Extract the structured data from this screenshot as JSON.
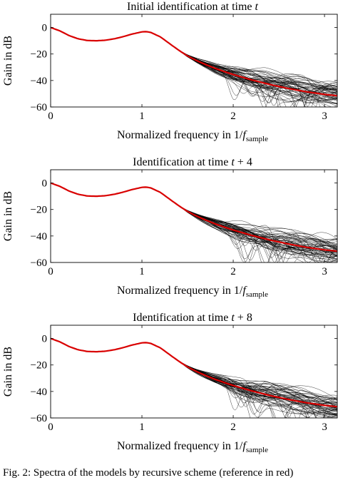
{
  "figure": {
    "caption": "Fig. 2: Spectra of the models by recursive scheme (reference in red)"
  },
  "colors": {
    "reference": "#d90000",
    "models": "#000000"
  },
  "chart_data": [
    {
      "type": "line",
      "title": "Initial identification at time t",
      "xlabel": "Normalized frequency in 1/f_sample",
      "ylabel": "Gain in dB",
      "xlim": [
        0,
        3.14
      ],
      "ylim": [
        -60,
        10
      ],
      "xticks": [
        0,
        1,
        2,
        3
      ],
      "yticks": [
        0,
        -20,
        -40,
        -60
      ],
      "grid": false,
      "ensemble_model_count": 60,
      "series": [
        {
          "role": "reference",
          "color": "#d90000",
          "x": [
            0,
            0.1,
            0.2,
            0.3,
            0.4,
            0.5,
            0.6,
            0.7,
            0.8,
            0.9,
            1.0,
            1.05,
            1.1,
            1.2,
            1.3,
            1.4,
            1.5,
            1.6,
            1.7,
            1.8,
            1.9,
            2.0,
            2.2,
            2.4,
            2.6,
            2.8,
            3.0,
            3.14
          ],
          "values": [
            0,
            -2.5,
            -6,
            -8.5,
            -9.8,
            -10,
            -9.6,
            -8.5,
            -6.8,
            -4.8,
            -3.3,
            -3.1,
            -3.8,
            -7,
            -12,
            -17,
            -21.5,
            -25,
            -28,
            -30.8,
            -33.2,
            -35.5,
            -39.5,
            -43,
            -46,
            -48.5,
            -50.5,
            -51.5
          ]
        }
      ]
    },
    {
      "type": "line",
      "title": "Identification at time t + 4",
      "xlabel": "Normalized frequency in 1/f_sample",
      "ylabel": "Gain in dB",
      "xlim": [
        0,
        3.14
      ],
      "ylim": [
        -60,
        10
      ],
      "xticks": [
        0,
        1,
        2,
        3
      ],
      "yticks": [
        0,
        -20,
        -40,
        -60
      ],
      "grid": false,
      "ensemble_model_count": 60,
      "series": [
        {
          "role": "reference",
          "color": "#d90000",
          "x": [
            0,
            0.1,
            0.2,
            0.3,
            0.4,
            0.5,
            0.6,
            0.7,
            0.8,
            0.9,
            1.0,
            1.05,
            1.1,
            1.2,
            1.3,
            1.4,
            1.5,
            1.6,
            1.7,
            1.8,
            1.9,
            2.0,
            2.2,
            2.4,
            2.6,
            2.8,
            3.0,
            3.14
          ],
          "values": [
            0,
            -2.5,
            -6,
            -8.5,
            -9.8,
            -10,
            -9.6,
            -8.5,
            -6.8,
            -4.8,
            -3.3,
            -3.1,
            -3.8,
            -7,
            -12,
            -17,
            -21.5,
            -25,
            -28,
            -30.8,
            -33.2,
            -35.5,
            -39.5,
            -43,
            -46,
            -48.5,
            -50.5,
            -51.5
          ]
        }
      ]
    },
    {
      "type": "line",
      "title": "Identification at time t + 8",
      "xlabel": "Normalized frequency in 1/f_sample",
      "ylabel": "Gain in dB",
      "xlim": [
        0,
        3.14
      ],
      "ylim": [
        -60,
        10
      ],
      "xticks": [
        0,
        1,
        2,
        3
      ],
      "yticks": [
        0,
        -20,
        -40,
        -60
      ],
      "grid": false,
      "ensemble_model_count": 60,
      "series": [
        {
          "role": "reference",
          "color": "#d90000",
          "x": [
            0,
            0.1,
            0.2,
            0.3,
            0.4,
            0.5,
            0.6,
            0.7,
            0.8,
            0.9,
            1.0,
            1.05,
            1.1,
            1.2,
            1.3,
            1.4,
            1.5,
            1.6,
            1.7,
            1.8,
            1.9,
            2.0,
            2.2,
            2.4,
            2.6,
            2.8,
            3.0,
            3.14
          ],
          "values": [
            0,
            -2.5,
            -6,
            -8.5,
            -9.8,
            -10,
            -9.6,
            -8.5,
            -6.8,
            -4.8,
            -3.3,
            -3.1,
            -3.8,
            -7,
            -12,
            -17,
            -21.5,
            -25,
            -28,
            -30.8,
            -33.2,
            -35.5,
            -39.5,
            -43,
            -46,
            -48.5,
            -50.5,
            -51.5
          ]
        }
      ]
    }
  ]
}
